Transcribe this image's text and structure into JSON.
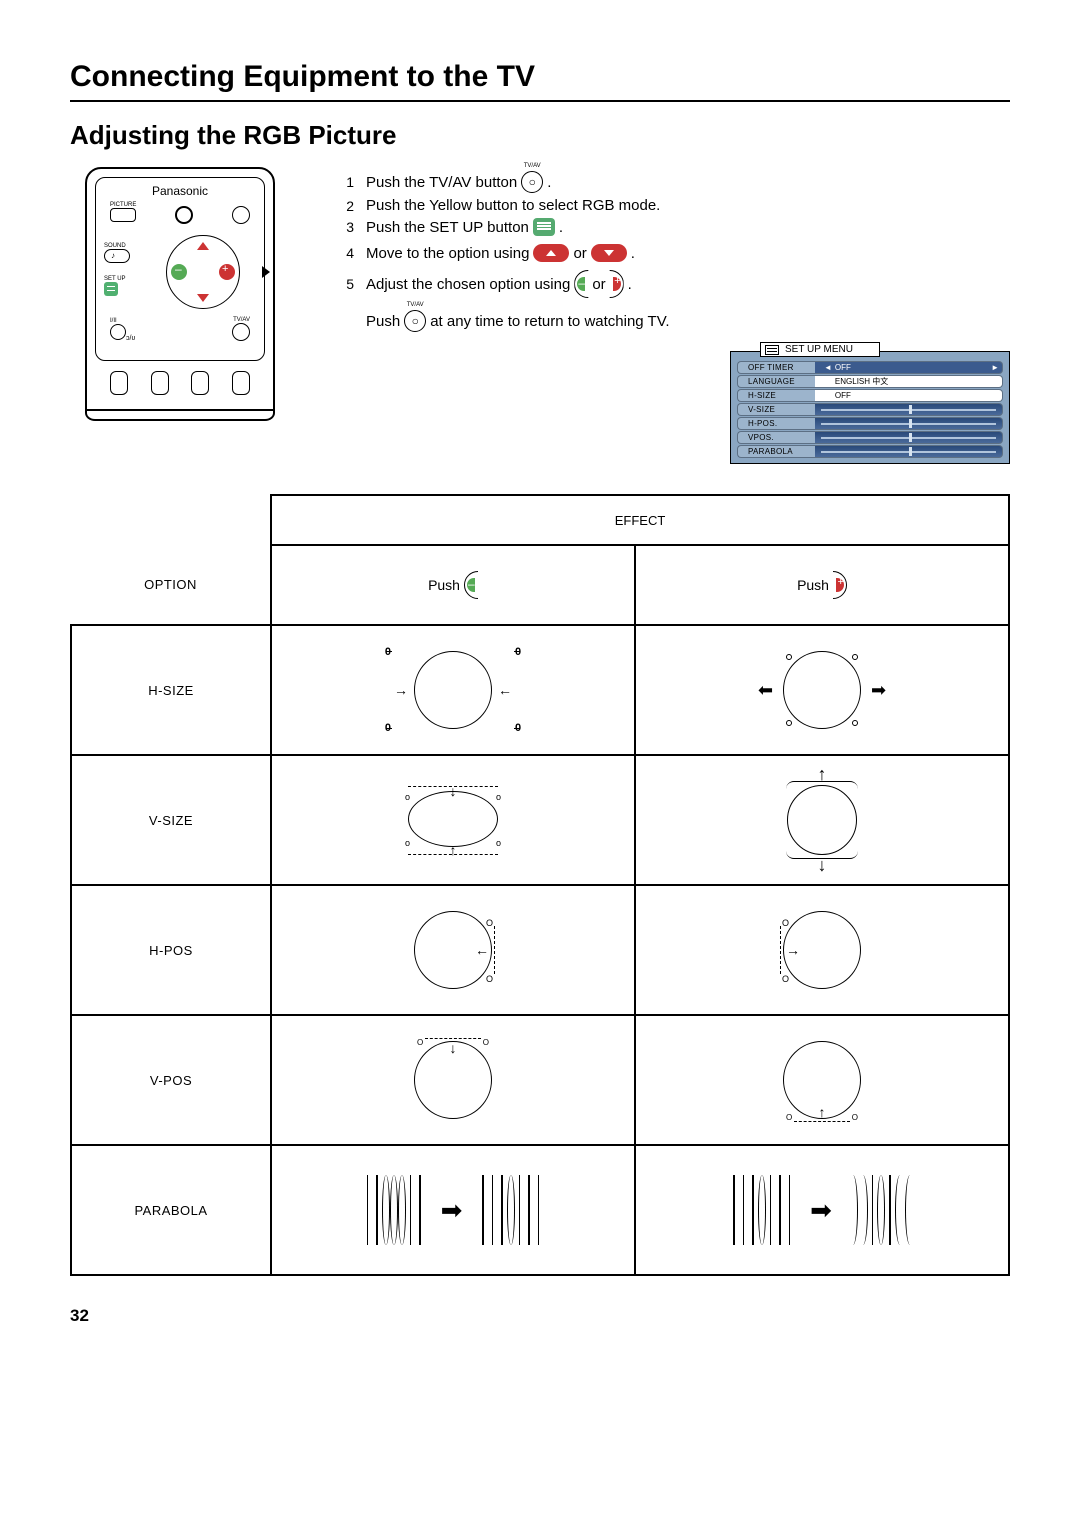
{
  "header": {
    "title": "Connecting Equipment to the TV",
    "section": "Adjusting the RGB Picture"
  },
  "remote": {
    "brand": "Panasonic",
    "labels": {
      "picture": "PICTURE",
      "sound": "SOUND",
      "setup": "SET UP",
      "ur": "I/II",
      "tvav": "TV/AV"
    }
  },
  "steps": [
    {
      "n": "1",
      "before": "Push the TV/AV button",
      "after": "."
    },
    {
      "n": "2",
      "before": "Push the Yellow button to select RGB mode.",
      "after": ""
    },
    {
      "n": "3",
      "before": "Push the SET UP button",
      "after": "."
    },
    {
      "n": "4",
      "before": "Move to the option using",
      "mid": "or",
      "after": "."
    },
    {
      "n": "5",
      "before": "Adjust the chosen option using",
      "mid": "or",
      "after": "."
    }
  ],
  "footer": {
    "before": "Push",
    "after": "at any time to return to watching TV."
  },
  "icons": {
    "tvav_label": "TV/AV"
  },
  "setup_menu": {
    "title": "SET UP MENU",
    "rows": [
      {
        "label": "OFF TIMER",
        "value": "OFF",
        "type": "text-dark"
      },
      {
        "label": "LANGUAGE",
        "value": "ENGLISH  中文",
        "type": "text-white"
      },
      {
        "label": "H-SIZE",
        "value": "OFF",
        "type": "text-white"
      },
      {
        "label": "V-SIZE",
        "value": "",
        "type": "slider"
      },
      {
        "label": "H-POS.",
        "value": "",
        "type": "slider"
      },
      {
        "label": "VPOS.",
        "value": "",
        "type": "slider"
      },
      {
        "label": "PARABOLA",
        "value": "",
        "type": "slider"
      }
    ]
  },
  "table": {
    "effect_header": "EFFECT",
    "option_header": "OPTION",
    "push_label": "Push",
    "rows": [
      {
        "label": "H-SIZE"
      },
      {
        "label": "V-SIZE"
      },
      {
        "label": "H-POS"
      },
      {
        "label": "V-POS"
      },
      {
        "label": "PARABOLA"
      }
    ]
  },
  "page_number": "32",
  "colors": {
    "green": "#55aa55",
    "red": "#cc3333",
    "menu_bg": "#8aa6c2",
    "menu_dark": "#3b5b8e"
  }
}
